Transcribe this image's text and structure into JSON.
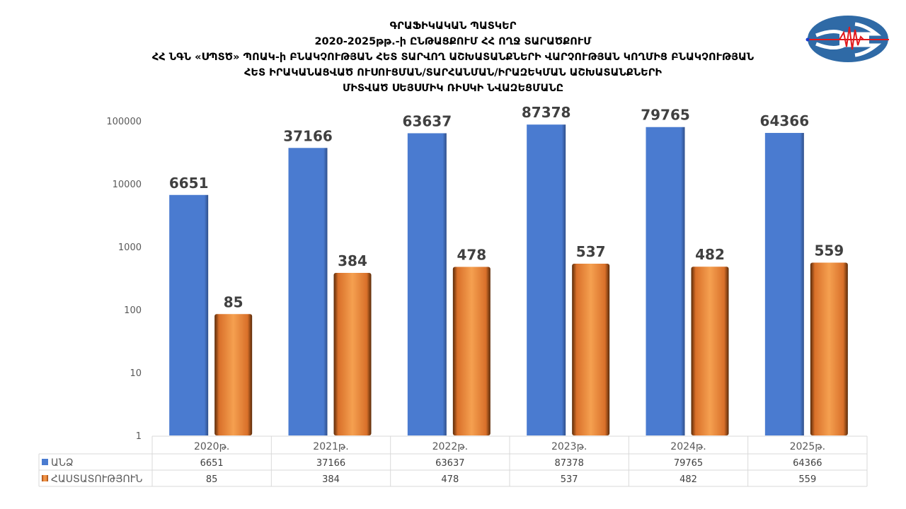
{
  "title_lines": [
    "ԳՐԱՖԻԿԱԿԱՆ ՊԱՏԿԵՐ",
    "2020-2025թթ.-ի ԸՆԹԱՑՔՈՒՄ ՀՀ ՈՂՋ ՏԱՐԱԾՔՈՒՄ",
    "ՀՀ ՆԳՆ «ՍՊՏԾ» ՊՈԱԿ-ի ԲՆԱԿՉՈՒԹՅԱՆ ՀԵՏ ՏԱՐՎՈՂ ԱՇԽԱՏԱՆՔՆԵՐԻ ՎԱՐՉՈՒԹՅԱՆ ԿՈՂՄԻՑ ԲՆԱԿՉՈՒԹՅԱՆ",
    "ՀԵՏ ԻՐԱԿԱՆԱՑՎԱԾ ՈՒՍՈՒՑՄԱՆ/ՏԱՐՀԱՆՄԱՆ/ԻՐԱԶԵԿՄԱՆ ԱՇԽԱՏԱՆՔՆԵՐԻ",
    "ՄԻՏՎԱԾ ՍԵՅՍՄԻԿ ՌԻՍԿԻ ՆՎԱԶԵՑՄԱՆԸ"
  ],
  "logo": {
    "icon": "seismic-wave-logo",
    "colors": {
      "primary": "#2f6aa6",
      "accent": "#e0191d"
    }
  },
  "chart_data": {
    "type": "bar",
    "y_scale": "log",
    "ylim": [
      1,
      100000
    ],
    "y_ticks": [
      "1",
      "10",
      "100",
      "1000",
      "10000",
      "100000"
    ],
    "grid": false,
    "legend": "data-table",
    "categories": [
      "2020թ.",
      "2021թ.",
      "2022թ.",
      "2023թ.",
      "2024թ.",
      "2025թ."
    ],
    "series": [
      {
        "name": "ԱՆՁ",
        "color": "#4a7bd0",
        "values": [
          6651,
          37166,
          63637,
          87378,
          79765,
          64366
        ]
      },
      {
        "name": "ՀԱՍՏԱՏՈՒԹՅՈՒՆ",
        "color": "#f08a35",
        "values": [
          85,
          384,
          478,
          537,
          482,
          559
        ]
      }
    ]
  }
}
